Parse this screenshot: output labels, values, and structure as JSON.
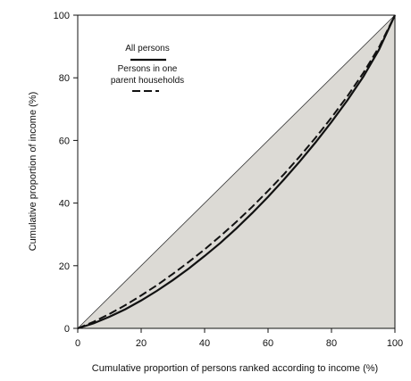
{
  "chart_data": {
    "type": "line",
    "xlabel": "Cumulative proportion of persons ranked according to income (%)",
    "ylabel": "Cumulative proportion of income (%)",
    "xlim": [
      0,
      100
    ],
    "ylim": [
      0,
      100
    ],
    "x_ticks": [
      "0",
      "20",
      "40",
      "60",
      "80",
      "100"
    ],
    "y_ticks": [
      "0",
      "20",
      "40",
      "60",
      "80",
      "100"
    ],
    "grid": false,
    "legend_position": "top-left",
    "area_fill_color": "#dcdad5",
    "line_of_equality": {
      "x": [
        0,
        100
      ],
      "y": [
        0,
        100
      ]
    },
    "series": [
      {
        "name": "All persons",
        "style": "solid",
        "x": [
          0,
          5,
          10,
          15,
          20,
          25,
          30,
          35,
          40,
          45,
          50,
          55,
          60,
          65,
          70,
          75,
          80,
          85,
          90,
          95,
          100
        ],
        "y": [
          0,
          1.6,
          3.7,
          6.1,
          8.9,
          12.0,
          15.4,
          19.1,
          23.1,
          27.3,
          31.9,
          36.8,
          42.0,
          47.5,
          53.3,
          59.4,
          65.9,
          72.8,
          80.3,
          89.0,
          100
        ]
      },
      {
        "name": "Persons in one parent households",
        "style": "dashed",
        "x": [
          0,
          5,
          10,
          15,
          20,
          25,
          30,
          35,
          40,
          45,
          50,
          55,
          60,
          65,
          70,
          75,
          80,
          85,
          90,
          95,
          100
        ],
        "y": [
          0,
          2.1,
          4.6,
          7.4,
          10.5,
          13.8,
          17.4,
          21.2,
          25.2,
          29.5,
          34.0,
          38.8,
          43.9,
          49.2,
          54.9,
          60.9,
          67.3,
          74.1,
          81.5,
          89.8,
          100
        ]
      }
    ]
  }
}
